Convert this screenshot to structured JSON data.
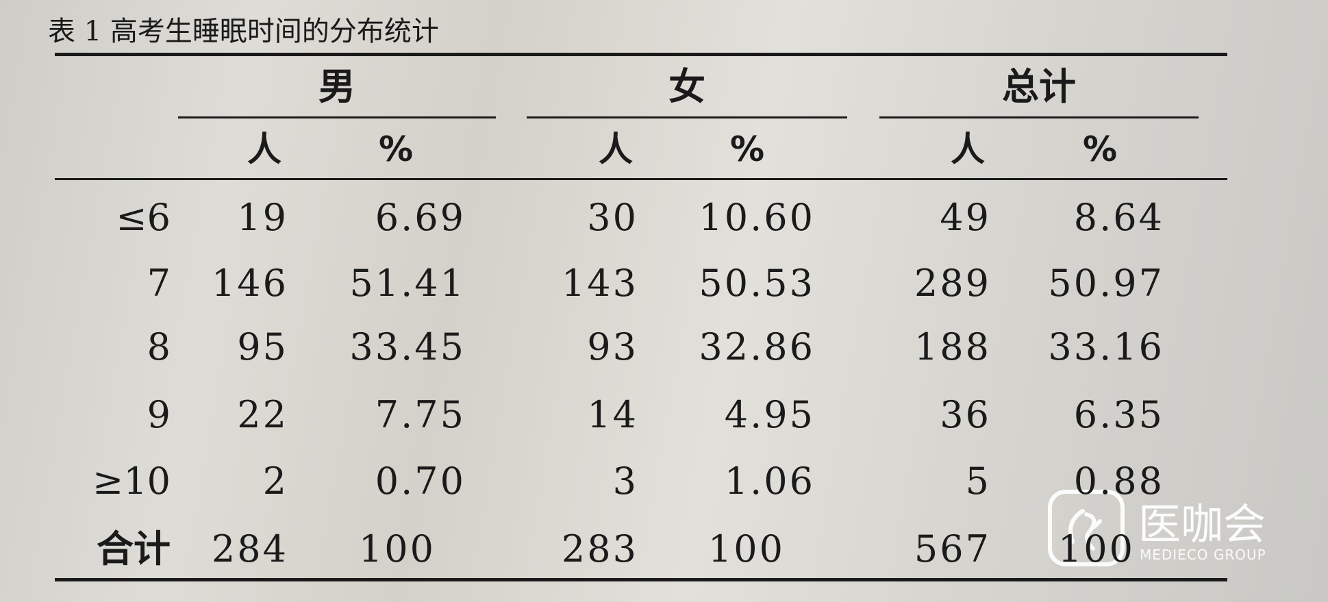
{
  "title": "表 1  高考生睡眠时间的分布统计",
  "table": {
    "groups": [
      "男",
      "女",
      "总计"
    ],
    "subheaders": [
      "人",
      "%",
      "人",
      "%",
      "人",
      "%"
    ],
    "rows": [
      [
        "≤6",
        "19",
        "6.69",
        "30",
        "10.60",
        "49",
        "8.64"
      ],
      [
        "7",
        "146",
        "51.41",
        "143",
        "50.53",
        "289",
        "50.97"
      ],
      [
        "8",
        "95",
        "33.45",
        "93",
        "32.86",
        "188",
        "33.16"
      ],
      [
        "9",
        "22",
        "7.75",
        "14",
        "4.95",
        "36",
        "6.35"
      ],
      [
        "≥10",
        "2",
        "0.70",
        "3",
        "1.06",
        "5",
        "0.88"
      ],
      [
        "合计",
        "284",
        "100",
        "283",
        "100",
        "567",
        "100"
      ]
    ]
  },
  "watermark": {
    "name": "医咖会",
    "subtitle": "MEDIECO GROUP"
  }
}
